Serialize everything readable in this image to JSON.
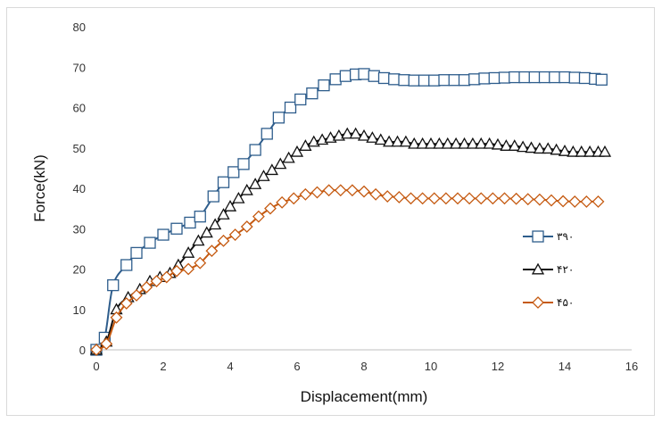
{
  "chart_data": {
    "type": "line",
    "title": "",
    "xlabel": "Displacement(mm)",
    "ylabel": "Force(kN)",
    "xlim": [
      0,
      16
    ],
    "ylim": [
      0,
      80
    ],
    "x_ticks": [
      "0",
      "2",
      "4",
      "6",
      "8",
      "10",
      "12",
      "14",
      "16"
    ],
    "y_ticks": [
      "0",
      "10",
      "20",
      "30",
      "40",
      "50",
      "60",
      "70",
      "80"
    ],
    "grid": false,
    "legend_position": "right",
    "series": [
      {
        "name": "۳۹۰",
        "color": "#2e5d8c",
        "marker": "square",
        "x": [
          0.0,
          0.25,
          0.5,
          0.9,
          1.2,
          1.6,
          2.0,
          2.4,
          2.8,
          3.1,
          3.5,
          3.8,
          4.1,
          4.4,
          4.75,
          5.1,
          5.45,
          5.8,
          6.1,
          6.45,
          6.8,
          7.15,
          7.45,
          7.75,
          8.0,
          8.3,
          8.6,
          8.9,
          9.2,
          9.5,
          9.8,
          10.1,
          10.4,
          10.7,
          11.0,
          11.3,
          11.6,
          11.9,
          12.2,
          12.5,
          12.8,
          13.1,
          13.4,
          13.7,
          14.0,
          14.3,
          14.6,
          14.9,
          15.1
        ],
        "values": [
          0,
          3,
          16,
          21,
          24,
          26.5,
          28.5,
          30,
          31.5,
          33,
          38,
          41.5,
          44,
          46,
          49.5,
          53.5,
          57.5,
          60,
          62,
          63.5,
          65.5,
          67,
          67.8,
          68.2,
          68.3,
          67.8,
          67.3,
          67,
          66.8,
          66.7,
          66.7,
          66.7,
          66.8,
          66.8,
          66.8,
          67,
          67.2,
          67.3,
          67.4,
          67.5,
          67.5,
          67.5,
          67.5,
          67.5,
          67.5,
          67.4,
          67.3,
          67.1,
          66.9
        ]
      },
      {
        "name": "۴۲۰",
        "color": "#111111",
        "marker": "triangle",
        "x": [
          0.0,
          0.3,
          0.6,
          0.95,
          1.3,
          1.6,
          1.9,
          2.2,
          2.45,
          2.75,
          3.05,
          3.3,
          3.55,
          3.8,
          4.0,
          4.25,
          4.5,
          4.75,
          5.0,
          5.25,
          5.5,
          5.75,
          6.0,
          6.25,
          6.5,
          6.75,
          7.0,
          7.25,
          7.5,
          7.75,
          8.0,
          8.25,
          8.5,
          8.75,
          9.0,
          9.25,
          9.5,
          9.75,
          10.0,
          10.25,
          10.5,
          10.75,
          11.0,
          11.25,
          11.5,
          11.75,
          12.0,
          12.25,
          12.5,
          12.75,
          13.0,
          13.25,
          13.5,
          13.75,
          14.0,
          14.25,
          14.5,
          14.75,
          15.0,
          15.2
        ],
        "values": [
          0,
          2,
          10,
          13,
          15,
          17,
          18,
          19,
          21,
          24,
          27,
          29,
          31,
          33.5,
          35.5,
          37.5,
          39.5,
          41,
          43,
          44.5,
          46,
          47.5,
          49,
          50.5,
          51.5,
          52,
          52.5,
          53,
          53.5,
          53.5,
          53,
          52.5,
          52,
          51.5,
          51.5,
          51.5,
          51,
          51,
          51,
          51,
          51,
          51,
          51,
          51,
          51,
          51,
          50.8,
          50.5,
          50.5,
          50.2,
          50,
          49.8,
          49.8,
          49.5,
          49.2,
          49,
          49,
          49,
          49,
          49
        ]
      },
      {
        "name": "۴۵۰",
        "color": "#c55a11",
        "marker": "diamond",
        "x": [
          0.0,
          0.3,
          0.6,
          0.9,
          1.2,
          1.5,
          1.8,
          2.1,
          2.4,
          2.75,
          3.1,
          3.45,
          3.8,
          4.15,
          4.5,
          4.85,
          5.2,
          5.55,
          5.9,
          6.25,
          6.6,
          6.95,
          7.3,
          7.65,
          8.0,
          8.35,
          8.7,
          9.05,
          9.4,
          9.75,
          10.1,
          10.45,
          10.8,
          11.15,
          11.5,
          11.85,
          12.2,
          12.55,
          12.9,
          13.25,
          13.6,
          13.95,
          14.3,
          14.65,
          15.0
        ],
        "values": [
          0,
          1.5,
          8,
          11.5,
          13.5,
          15.5,
          17,
          18,
          19.5,
          20,
          21.5,
          24.5,
          27,
          28.5,
          30.5,
          33,
          35,
          36.5,
          37.5,
          38.5,
          39,
          39.5,
          39.5,
          39.5,
          39.2,
          38.5,
          38,
          37.8,
          37.5,
          37.5,
          37.5,
          37.5,
          37.5,
          37.5,
          37.5,
          37.5,
          37.5,
          37.4,
          37.3,
          37.2,
          37,
          36.8,
          36.7,
          36.7,
          36.7
        ]
      }
    ]
  }
}
